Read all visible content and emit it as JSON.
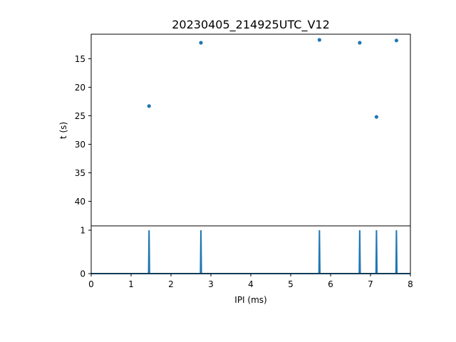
{
  "chart_data": [
    {
      "type": "scatter",
      "title": "20230405_214925UTC_V12",
      "xlabel": "",
      "ylabel": "t (s)",
      "xlim": [
        0,
        8
      ],
      "ylim": [
        44.3,
        10.7
      ],
      "y_inverted": true,
      "yticks": [
        15,
        20,
        25,
        30,
        35,
        40
      ],
      "grid": false,
      "color": "#1f77b4",
      "points": [
        {
          "x": 1.45,
          "y": 23.3
        },
        {
          "x": 2.75,
          "y": 12.2
        },
        {
          "x": 5.72,
          "y": 11.7
        },
        {
          "x": 6.73,
          "y": 12.2
        },
        {
          "x": 7.15,
          "y": 25.2
        },
        {
          "x": 7.65,
          "y": 11.8
        }
      ]
    },
    {
      "type": "line",
      "title": "",
      "xlabel": "IPI (ms)",
      "ylabel": "",
      "xlim": [
        0,
        8
      ],
      "ylim": [
        0,
        1.1
      ],
      "xticks": [
        0,
        1,
        2,
        3,
        4,
        5,
        6,
        7,
        8
      ],
      "yticks": [
        0,
        1
      ],
      "grid": false,
      "color": "#1f77b4",
      "spikes_x": [
        1.45,
        2.75,
        5.72,
        6.73,
        7.15,
        7.65
      ],
      "spike_height": 1
    }
  ]
}
